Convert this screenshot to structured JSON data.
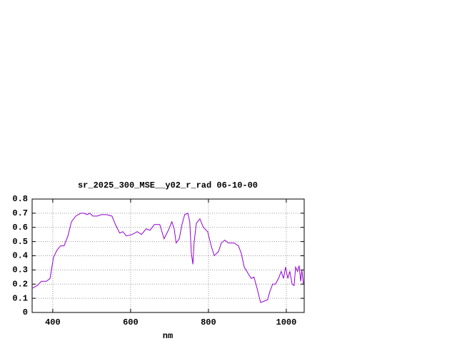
{
  "chart_data": {
    "type": "line",
    "title": "sr_2025_300_MSE__y02_r_rad 06-10-00",
    "x_label": "nm",
    "x": [
      347,
      360,
      371,
      384,
      393,
      402,
      411,
      420,
      429,
      439,
      448,
      459,
      472,
      481,
      488,
      495,
      503,
      514,
      525,
      539,
      552,
      561,
      572,
      580,
      589,
      604,
      617,
      628,
      640,
      650,
      661,
      675,
      686,
      697,
      706,
      712,
      717,
      725,
      732,
      739,
      747,
      752,
      756,
      760,
      763,
      769,
      778,
      787,
      798,
      807,
      815,
      826,
      833,
      842,
      851,
      866,
      877,
      884,
      892,
      903,
      910,
      917,
      925,
      934,
      943,
      952,
      958,
      965,
      972,
      980,
      987,
      993,
      998,
      1004,
      1009,
      1015,
      1020,
      1024,
      1029,
      1033,
      1037,
      1040,
      1044
    ],
    "series": [
      {
        "color": "#9400d3",
        "values": [
          0.17,
          0.19,
          0.22,
          0.22,
          0.24,
          0.39,
          0.44,
          0.47,
          0.47,
          0.54,
          0.64,
          0.68,
          0.7,
          0.7,
          0.69,
          0.7,
          0.68,
          0.68,
          0.69,
          0.69,
          0.68,
          0.62,
          0.56,
          0.57,
          0.54,
          0.55,
          0.57,
          0.55,
          0.59,
          0.58,
          0.62,
          0.62,
          0.52,
          0.58,
          0.64,
          0.59,
          0.49,
          0.52,
          0.62,
          0.69,
          0.7,
          0.64,
          0.42,
          0.34,
          0.49,
          0.63,
          0.66,
          0.6,
          0.57,
          0.47,
          0.4,
          0.43,
          0.49,
          0.51,
          0.49,
          0.49,
          0.47,
          0.42,
          0.32,
          0.27,
          0.24,
          0.25,
          0.17,
          0.07,
          0.08,
          0.09,
          0.15,
          0.2,
          0.2,
          0.24,
          0.29,
          0.24,
          0.32,
          0.24,
          0.29,
          0.2,
          0.19,
          0.32,
          0.29,
          0.33,
          0.22,
          0.3,
          0.2
        ]
      }
    ],
    "xlim": [
      347,
      1046
    ],
    "xticks": [
      400,
      600,
      800,
      1000
    ],
    "ylim": [
      0,
      0.8
    ],
    "yticks": [
      0,
      0.1,
      0.2,
      0.3,
      0.4,
      0.5,
      0.6,
      0.7,
      0.8
    ],
    "grid": true
  }
}
